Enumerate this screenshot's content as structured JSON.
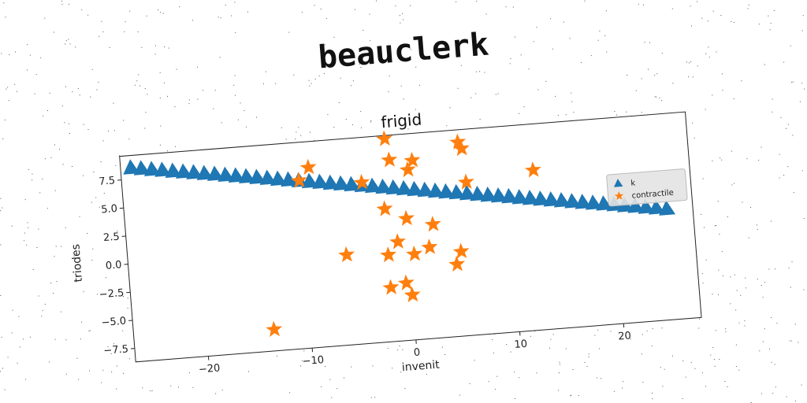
{
  "super_title": "beauclerk",
  "chart_data": {
    "type": "scatter",
    "title": "frigid",
    "xlabel": "invenit",
    "ylabel": "triodes",
    "xlim": [
      -27,
      27.5
    ],
    "ylim": [
      -8.7,
      9.6
    ],
    "xticks": [
      -20,
      -10,
      0,
      10,
      20
    ],
    "xtick_labels": [
      "−20",
      "−10",
      "0",
      "10",
      "20"
    ],
    "yticks": [
      -7.5,
      -5.0,
      -2.5,
      0.0,
      2.5,
      5.0,
      7.5
    ],
    "ytick_labels": [
      "−7.5",
      "−5.0",
      "−2.5",
      "0.0",
      "2.5",
      "5.0",
      "7.5"
    ],
    "grid": false,
    "legend_position": "center-right",
    "series": [
      {
        "name": "k",
        "marker": "triangle",
        "color": "#1f77b4",
        "x": [
          -26,
          -25,
          -24,
          -23,
          -22,
          -21,
          -20,
          -19,
          -18,
          -17,
          -16,
          -15,
          -14,
          -13,
          -12,
          -11,
          -10,
          -9,
          -8,
          -7,
          -6,
          -5,
          -4,
          -3,
          -2,
          -1,
          0,
          1,
          2,
          3,
          4,
          5,
          6,
          7,
          8,
          9,
          10,
          11,
          12,
          13,
          14,
          15,
          16,
          17,
          18,
          19,
          20,
          21,
          22,
          23,
          24,
          25
        ],
        "y": [
          8.5,
          8.36,
          8.21,
          8.07,
          7.92,
          7.78,
          7.64,
          7.49,
          7.35,
          7.2,
          7.06,
          6.92,
          6.77,
          6.63,
          6.48,
          6.34,
          6.2,
          6.05,
          5.91,
          5.76,
          5.62,
          5.48,
          5.33,
          5.19,
          5.04,
          4.9,
          4.76,
          4.61,
          4.47,
          4.32,
          4.18,
          4.04,
          3.89,
          3.75,
          3.6,
          3.46,
          3.32,
          3.17,
          3.03,
          2.88,
          2.74,
          2.6,
          2.45,
          2.31,
          2.16,
          2.02,
          1.88,
          1.73,
          1.59,
          1.44,
          1.3,
          1.15
        ]
      },
      {
        "name": "contractile",
        "marker": "star",
        "color": "#ff7f0e",
        "x": [
          -1.5,
          -10,
          -9,
          -4,
          -1.2,
          0.5,
          1,
          5.5,
          5.8,
          6,
          12.5,
          -2,
          0,
          2.5,
          -6,
          -1,
          -2,
          0.5,
          2,
          5,
          4.5,
          -2,
          -0.5,
          0,
          -13.5
        ],
        "y": [
          9.3,
          6.2,
          7.3,
          5.6,
          7.4,
          6.4,
          7.2,
          8.5,
          7.9,
          4.9,
          5.5,
          3.1,
          2.1,
          1.4,
          -0.7,
          0.1,
          -1.0,
          -1.1,
          -0.6,
          -1.2,
          -2.3,
          -3.9,
          -3.6,
          -4.7,
          -6.8
        ]
      }
    ]
  }
}
